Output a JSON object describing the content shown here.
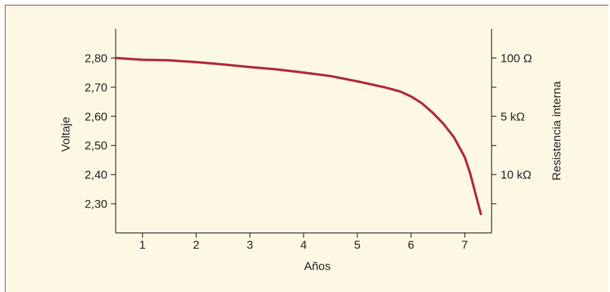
{
  "chart_data": {
    "type": "line",
    "title": "",
    "xlabel": "Años",
    "ylabel": "Voltaje",
    "y2label": "Resistencia interna",
    "xlim": [
      0.5,
      7.5
    ],
    "ylim": [
      2.2,
      2.9
    ],
    "xticks": [
      "1",
      "2",
      "3",
      "4",
      "5",
      "6",
      "7"
    ],
    "yticks": [
      "2,80",
      "2,70",
      "2,60",
      "2,50",
      "2,40",
      "2,30"
    ],
    "y2ticks": [
      "100 Ω",
      "5 kΩ",
      "10 kΩ"
    ],
    "grid": false,
    "series": [
      {
        "color": "#b02a3a",
        "x": [
          0.5,
          1.0,
          1.5,
          2.0,
          2.5,
          3.0,
          3.5,
          4.0,
          4.5,
          5.0,
          5.5,
          5.8,
          6.0,
          6.2,
          6.4,
          6.6,
          6.8,
          7.0,
          7.1,
          7.2,
          7.3
        ],
        "y": [
          2.8,
          2.794,
          2.792,
          2.786,
          2.778,
          2.769,
          2.761,
          2.75,
          2.738,
          2.72,
          2.7,
          2.685,
          2.668,
          2.645,
          2.613,
          2.575,
          2.528,
          2.46,
          2.405,
          2.335,
          2.265
        ]
      }
    ]
  }
}
